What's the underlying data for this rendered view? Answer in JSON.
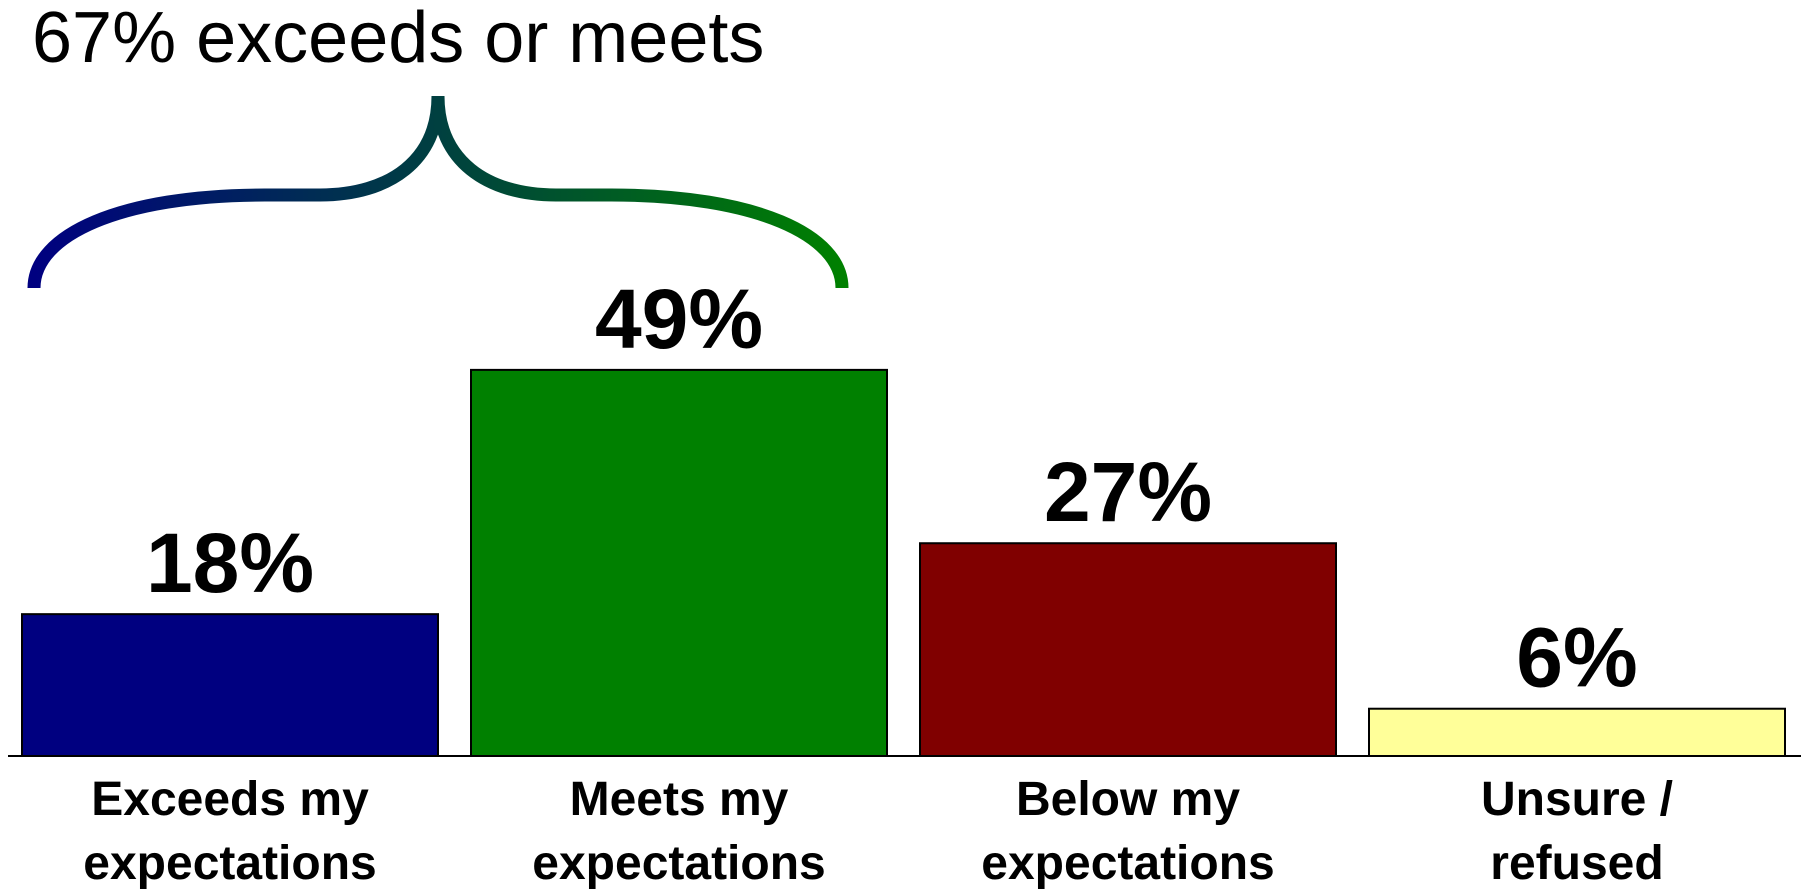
{
  "chart_data": {
    "type": "bar",
    "title": "",
    "xlabel": "",
    "ylabel": "",
    "ylim": [
      0,
      55
    ],
    "grid": false,
    "categories": [
      [
        "Exceeds my",
        "expectations"
      ],
      [
        "Meets my",
        "expectations"
      ],
      [
        "Below my",
        "expectations"
      ],
      [
        "Unsure /",
        "refused"
      ]
    ],
    "values": [
      18,
      49,
      27,
      6
    ],
    "value_labels": [
      "18%",
      "49%",
      "27%",
      "6%"
    ],
    "colors": [
      "#000080",
      "#008000",
      "#800000",
      "#FFFF99"
    ],
    "annotation": {
      "text": "67% exceeds or meets",
      "spans_categories": [
        0,
        1
      ],
      "brace_color_start": "#000080",
      "brace_color_end": "#008000"
    }
  }
}
